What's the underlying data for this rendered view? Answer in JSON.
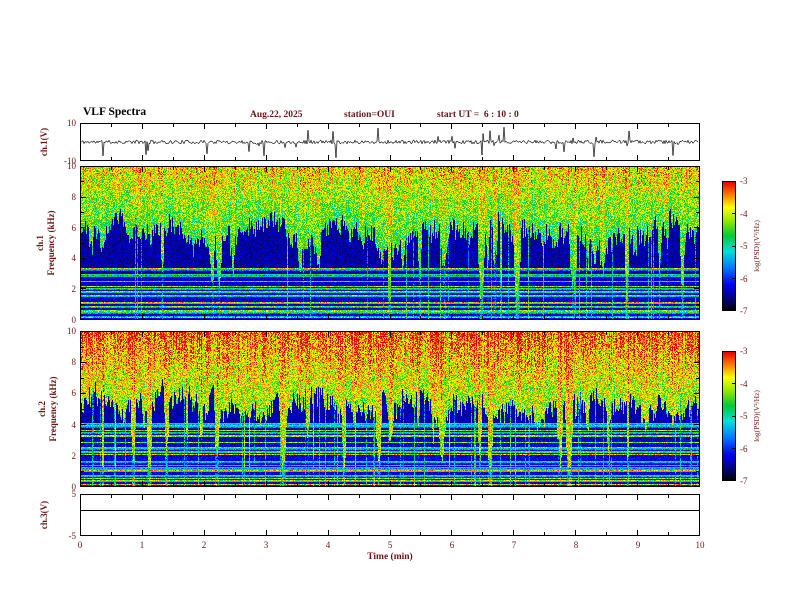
{
  "colors": {
    "background": "#ffffff",
    "frame": "#000000",
    "label_text": "#6b1515",
    "title_text": "#000000",
    "trace": "#000000"
  },
  "header": {
    "title": "VLF Spectra",
    "date": "Aug.22, 2025",
    "station": "station=OUI",
    "start_ut": "start UT =  6 : 10 : 0"
  },
  "xaxis": {
    "label": "Time (min)",
    "ticks": [
      0,
      1,
      2,
      3,
      4,
      5,
      6,
      7,
      8,
      9,
      10
    ],
    "lim": [
      0,
      10
    ]
  },
  "colorbar": {
    "label": "log(PSD)(V²/Hz)",
    "ticks": [
      -3,
      -4,
      -5,
      -6,
      -7
    ],
    "lim": [
      -7,
      -3
    ],
    "stops": [
      [
        0,
        "#000000"
      ],
      [
        0.08,
        "#000070"
      ],
      [
        0.2,
        "#0000ee"
      ],
      [
        0.33,
        "#0077ff"
      ],
      [
        0.46,
        "#00dddd"
      ],
      [
        0.58,
        "#00cc33"
      ],
      [
        0.7,
        "#99e800"
      ],
      [
        0.8,
        "#ffff00"
      ],
      [
        0.9,
        "#ff7700"
      ],
      [
        1,
        "#dd0000"
      ]
    ]
  },
  "chart_data": [
    {
      "type": "line",
      "name": "ch1-voltage",
      "ylabel": "ch.1(V)",
      "ylim": [
        -10,
        10
      ],
      "yticks": [
        10,
        -10
      ],
      "xlim": [
        0,
        10
      ],
      "description": "Dense black noise trace centered near 0 V with frequent narrow spikes reaching roughly ±8 V across the full 10 min record.",
      "appearance": {
        "seed": 11,
        "spike_prob": 0.045,
        "base_jitter_v": 1.1,
        "spike_max_v": 9
      }
    },
    {
      "type": "heatmap",
      "name": "ch1-spectrogram",
      "channel": "ch.1",
      "ylabel": "Frequency (kHz)",
      "ylim": [
        0,
        10
      ],
      "yticks": [
        0,
        2,
        4,
        6,
        8,
        10
      ],
      "xlim": [
        0,
        10
      ],
      "value_label": "log(PSD)(V²/Hz)",
      "value_lim": [
        -7,
        -3
      ],
      "description": "Broadband VLF spectrogram: intense yellow/green/red power above ~6 kHz with vertical sferic striations descending into a dark blue 3-6 kHz band; many narrow horizontal green interference lines below ~3.5 kHz on a dark blue background, plus a bright line near 0 kHz.",
      "appearance": {
        "seed": 21,
        "th_base": 0.56,
        "burst": 0.38,
        "streak_prob": 0.05,
        "low_base": 0.13,
        "top_base": 0.5,
        "top_span": 0.42,
        "noise": 0.32,
        "n_lines": 22,
        "line_f_max": 0.34
      }
    },
    {
      "type": "heatmap",
      "name": "ch2-spectrogram",
      "channel": "ch.2",
      "ylabel": "Frequency (kHz)",
      "ylim": [
        0,
        10
      ],
      "yticks": [
        0,
        2,
        4,
        6,
        8,
        10
      ],
      "xlim": [
        0,
        10
      ],
      "value_label": "log(PSD)(V²/Hz)",
      "value_lim": [
        -7,
        -3
      ],
      "description": "Similar to ch.1 but hotter: red/orange power dominates 5-10 kHz, activity dips lower in frequency, green vertical streaks reach toward 0 kHz, and horizontal interference lines appear below ~4 kHz, with a bright line near 0 kHz.",
      "appearance": {
        "seed": 33,
        "th_base": 0.5,
        "burst": 0.42,
        "streak_prob": 0.09,
        "low_base": 0.14,
        "top_base": 0.58,
        "top_span": 0.46,
        "noise": 0.32,
        "n_lines": 24,
        "line_f_max": 0.42
      }
    },
    {
      "type": "line",
      "name": "ch3-voltage",
      "ylabel": "ch.3(V)",
      "ylim": [
        -5,
        5
      ],
      "yticks": [
        5,
        -5
      ],
      "xlim": [
        0,
        10
      ],
      "description": "Flat horizontal black line at approximately +1 V for the entire record (channel inactive).",
      "appearance": {
        "seed": 44,
        "level_v": 1.2
      }
    }
  ]
}
